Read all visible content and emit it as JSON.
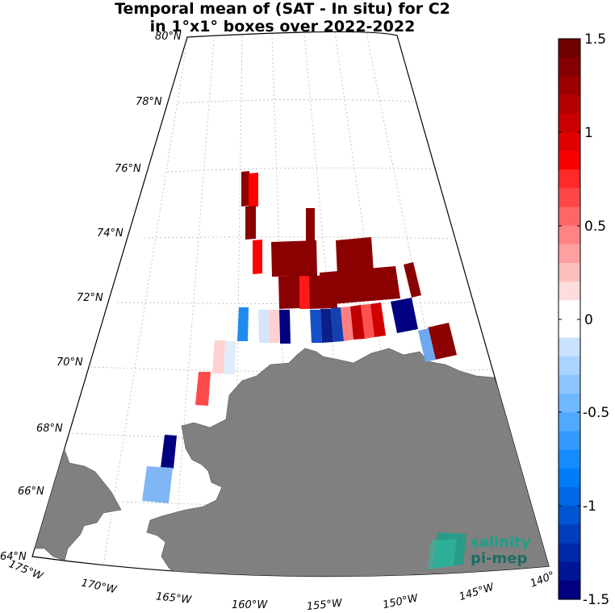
{
  "title": {
    "line1": "Temporal mean of (SAT - In situ) for C2",
    "line2": "in 1°x1° boxes over 2022-2022"
  },
  "map": {
    "lat_labels": [
      "80°N",
      "78°N",
      "76°N",
      "74°N",
      "72°N",
      "70°N",
      "68°N",
      "66°N",
      "64°N"
    ],
    "lon_labels": [
      "175°W",
      "170°W",
      "165°W",
      "160°W",
      "155°W",
      "150°W",
      "145°W",
      "140°"
    ],
    "land_color": "#808080"
  },
  "colorbar": {
    "ticks": [
      "1.5",
      "1",
      "0.5",
      "0",
      "-0.5",
      "-1",
      "-1.5"
    ],
    "min": -1.5,
    "max": 1.5
  },
  "logo": {
    "line1": "salinity",
    "line2": "pi-mep",
    "color": "#1aa08a"
  }
}
